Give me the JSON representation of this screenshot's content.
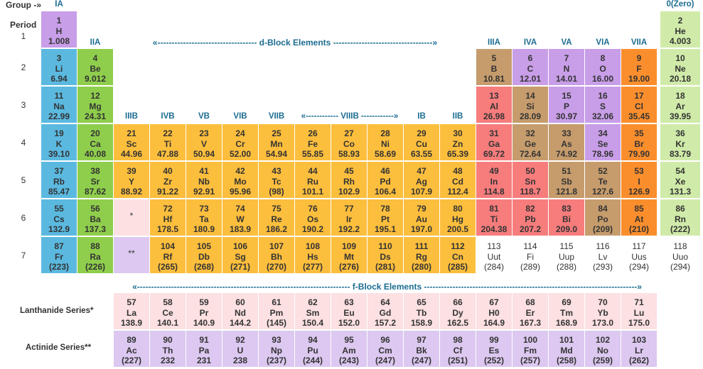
{
  "headers": {
    "group": "Group -»",
    "period": "Period",
    "d_block": "«----------------------------------- d-Block Elements -----------------------------------»",
    "f_block": "«--------------------------------------------------------------------------- f-Block Elements ---------------------------------------------------------------------------»",
    "viiib": "«------------ VIIIB ------------»",
    "lanthanide": "Lanthanide Series*",
    "actinide": "Actinide Series**",
    "lan_marker": "*",
    "act_marker": "**"
  },
  "groups": {
    "g1": "IA",
    "g2": "IIA",
    "g3": "IIIB",
    "g4": "IVB",
    "g5": "VB",
    "g6": "VIB",
    "g7": "VIIB",
    "g11": "IB",
    "g12": "IIB",
    "g13": "IIIA",
    "g14": "IVA",
    "g15": "VA",
    "g16": "VIA",
    "g17": "VIIA",
    "g18": "0(Zero)"
  },
  "periods": [
    "1",
    "2",
    "3",
    "4",
    "5",
    "6",
    "7"
  ],
  "colors": {
    "alkali": "#5bb9e0",
    "alkaline_earth": "#8fce4c",
    "transition": "#fcbe3d",
    "poor_metal": "#f77c7c",
    "metalloid": "#c69c6d",
    "nonmetal": "#c89ee8",
    "halogen": "#fb8e2c",
    "noble_gas": "#d0eba9",
    "lanthanide": "#fce0e2",
    "actinide": "#dcc8f0",
    "header_text": "#1b6c91"
  },
  "elements": [
    {
      "n": "1",
      "s": "H",
      "m": "1.008",
      "cat": "nm"
    },
    {
      "n": "2",
      "s": "He",
      "m": "4.003",
      "cat": "ng"
    },
    {
      "n": "3",
      "s": "Li",
      "m": "6.94",
      "cat": "alk"
    },
    {
      "n": "4",
      "s": "Be",
      "m": "9.012",
      "cat": "ae"
    },
    {
      "n": "5",
      "s": "B",
      "m": "10.81",
      "cat": "md"
    },
    {
      "n": "6",
      "s": "C",
      "m": "12.01",
      "cat": "nm"
    },
    {
      "n": "7",
      "s": "N",
      "m": "14.01",
      "cat": "nm"
    },
    {
      "n": "8",
      "s": "O",
      "m": "16.00",
      "cat": "nm"
    },
    {
      "n": "9",
      "s": "F",
      "m": "19.00",
      "cat": "hal"
    },
    {
      "n": "10",
      "s": "Ne",
      "m": "20.18",
      "cat": "ng"
    },
    {
      "n": "11",
      "s": "Na",
      "m": "22.99",
      "cat": "alk"
    },
    {
      "n": "12",
      "s": "Mg",
      "m": "24.31",
      "cat": "ae"
    },
    {
      "n": "13",
      "s": "Al",
      "m": "26.98",
      "cat": "pt"
    },
    {
      "n": "14",
      "s": "Si",
      "m": "28.09",
      "cat": "md"
    },
    {
      "n": "15",
      "s": "P",
      "m": "30.97",
      "cat": "nm"
    },
    {
      "n": "16",
      "s": "S",
      "m": "32.06",
      "cat": "nm"
    },
    {
      "n": "17",
      "s": "Cl",
      "m": "35.45",
      "cat": "hal"
    },
    {
      "n": "18",
      "s": "Ar",
      "m": "39.95",
      "cat": "ng"
    },
    {
      "n": "19",
      "s": "K",
      "m": "39.10",
      "cat": "alk"
    },
    {
      "n": "20",
      "s": "Ca",
      "m": "40.08",
      "cat": "ae"
    },
    {
      "n": "21",
      "s": "Sc",
      "m": "44.96",
      "cat": "tm"
    },
    {
      "n": "22",
      "s": "Ti",
      "m": "47.88",
      "cat": "tm"
    },
    {
      "n": "23",
      "s": "V",
      "m": "50.94",
      "cat": "tm"
    },
    {
      "n": "24",
      "s": "Cr",
      "m": "52.00",
      "cat": "tm"
    },
    {
      "n": "25",
      "s": "Mn",
      "m": "54.94",
      "cat": "tm"
    },
    {
      "n": "26",
      "s": "Fe",
      "m": "55.85",
      "cat": "tm"
    },
    {
      "n": "27",
      "s": "Co",
      "m": "58.93",
      "cat": "tm"
    },
    {
      "n": "28",
      "s": "Ni",
      "m": "58.69",
      "cat": "tm"
    },
    {
      "n": "29",
      "s": "Cu",
      "m": "63.55",
      "cat": "tm"
    },
    {
      "n": "30",
      "s": "Zn",
      "m": "65.39",
      "cat": "tm"
    },
    {
      "n": "31",
      "s": "Ga",
      "m": "69.72",
      "cat": "pt"
    },
    {
      "n": "32",
      "s": "Ge",
      "m": "72.64",
      "cat": "md"
    },
    {
      "n": "33",
      "s": "As",
      "m": "74.92",
      "cat": "md"
    },
    {
      "n": "34",
      "s": "Se",
      "m": "78.96",
      "cat": "nm"
    },
    {
      "n": "35",
      "s": "Br",
      "m": "79.90",
      "cat": "hal"
    },
    {
      "n": "36",
      "s": "Kr",
      "m": "83.79",
      "cat": "ng"
    },
    {
      "n": "37",
      "s": "Rb",
      "m": "85.47",
      "cat": "alk"
    },
    {
      "n": "38",
      "s": "Sr",
      "m": "87.62",
      "cat": "ae"
    },
    {
      "n": "39",
      "s": "Y",
      "m": "88.92",
      "cat": "tm"
    },
    {
      "n": "40",
      "s": "Zr",
      "m": "91.22",
      "cat": "tm"
    },
    {
      "n": "41",
      "s": "Nb",
      "m": "92.91",
      "cat": "tm"
    },
    {
      "n": "42",
      "s": "Mo",
      "m": "95.96",
      "cat": "tm"
    },
    {
      "n": "43",
      "s": "Tc",
      "m": "(98)",
      "cat": "tm"
    },
    {
      "n": "44",
      "s": "Ru",
      "m": "101.1",
      "cat": "tm"
    },
    {
      "n": "45",
      "s": "Rh",
      "m": "102.9",
      "cat": "tm"
    },
    {
      "n": "46",
      "s": "Pd",
      "m": "106.4",
      "cat": "tm"
    },
    {
      "n": "47",
      "s": "Ag",
      "m": "107.9",
      "cat": "tm"
    },
    {
      "n": "48",
      "s": "Cd",
      "m": "112.4",
      "cat": "tm"
    },
    {
      "n": "49",
      "s": "In",
      "m": "114.8",
      "cat": "pt"
    },
    {
      "n": "50",
      "s": "Sn",
      "m": "118.7",
      "cat": "pt"
    },
    {
      "n": "51",
      "s": "Sb",
      "m": "121.8",
      "cat": "md"
    },
    {
      "n": "52",
      "s": "Te",
      "m": "127.6",
      "cat": "md"
    },
    {
      "n": "53",
      "s": "I",
      "m": "126.9",
      "cat": "hal"
    },
    {
      "n": "54",
      "s": "Xe",
      "m": "131.3",
      "cat": "ng"
    },
    {
      "n": "55",
      "s": "Cs",
      "m": "132.9",
      "cat": "alk"
    },
    {
      "n": "56",
      "s": "Ba",
      "m": "137.3",
      "cat": "ae"
    },
    {
      "n": "72",
      "s": "Hf",
      "m": "178.5",
      "cat": "tm"
    },
    {
      "n": "73",
      "s": "Ta",
      "m": "180.9",
      "cat": "tm"
    },
    {
      "n": "74",
      "s": "W",
      "m": "183.9",
      "cat": "tm"
    },
    {
      "n": "75",
      "s": "Re",
      "m": "186.2",
      "cat": "tm"
    },
    {
      "n": "76",
      "s": "Os",
      "m": "190.2",
      "cat": "tm"
    },
    {
      "n": "77",
      "s": "Ir",
      "m": "192.2",
      "cat": "tm"
    },
    {
      "n": "78",
      "s": "Pt",
      "m": "195.1",
      "cat": "tm"
    },
    {
      "n": "79",
      "s": "Au",
      "m": "197.0",
      "cat": "tm"
    },
    {
      "n": "80",
      "s": "Hg",
      "m": "200.5",
      "cat": "tm"
    },
    {
      "n": "81",
      "s": "Ti",
      "m": "204.38",
      "cat": "pt"
    },
    {
      "n": "82",
      "s": "Pb",
      "m": "207.2",
      "cat": "pt"
    },
    {
      "n": "83",
      "s": "Bi",
      "m": "209.0",
      "cat": "pt"
    },
    {
      "n": "84",
      "s": "Po",
      "m": "(209)",
      "cat": "md"
    },
    {
      "n": "85",
      "s": "At",
      "m": "(210)",
      "cat": "hal"
    },
    {
      "n": "86",
      "s": "Rn",
      "m": "(222)",
      "cat": "ng"
    },
    {
      "n": "87",
      "s": "Fr",
      "m": "(223)",
      "cat": "alk"
    },
    {
      "n": "88",
      "s": "Ra",
      "m": "(226)",
      "cat": "ae"
    },
    {
      "n": "104",
      "s": "Rf",
      "m": "(265)",
      "cat": "tm"
    },
    {
      "n": "105",
      "s": "Db",
      "m": "(268)",
      "cat": "tm"
    },
    {
      "n": "106",
      "s": "Sg",
      "m": "(271)",
      "cat": "tm"
    },
    {
      "n": "107",
      "s": "Bh",
      "m": "(270)",
      "cat": "tm"
    },
    {
      "n": "108",
      "s": "Hs",
      "m": "(277)",
      "cat": "tm"
    },
    {
      "n": "109",
      "s": "Mt",
      "m": "(276)",
      "cat": "tm"
    },
    {
      "n": "110",
      "s": "Ds",
      "m": "(281)",
      "cat": "tm"
    },
    {
      "n": "111",
      "s": "Rg",
      "m": "(280)",
      "cat": "tm"
    },
    {
      "n": "112",
      "s": "Cn",
      "m": "(285)",
      "cat": "tm"
    },
    {
      "n": "113",
      "s": "Uut",
      "m": "(284)",
      "cat": "syn"
    },
    {
      "n": "114",
      "s": "Fi",
      "m": "(289)",
      "cat": "syn"
    },
    {
      "n": "115",
      "s": "Uup",
      "m": "(288)",
      "cat": "syn"
    },
    {
      "n": "116",
      "s": "Lv",
      "m": "(293)",
      "cat": "syn"
    },
    {
      "n": "117",
      "s": "Uus",
      "m": "(294)",
      "cat": "syn"
    },
    {
      "n": "118",
      "s": "Uuo",
      "m": "(294)",
      "cat": "syn"
    },
    {
      "n": "57",
      "s": "La",
      "m": "138.9",
      "cat": "lan"
    },
    {
      "n": "58",
      "s": "Ce",
      "m": "140.1",
      "cat": "lan"
    },
    {
      "n": "59",
      "s": "Pr",
      "m": "140.9",
      "cat": "lan"
    },
    {
      "n": "60",
      "s": "Nd",
      "m": "144.2",
      "cat": "lan"
    },
    {
      "n": "61",
      "s": "Pm",
      "m": "(145)",
      "cat": "lan"
    },
    {
      "n": "62",
      "s": "Sm",
      "m": "150.4",
      "cat": "lan"
    },
    {
      "n": "63",
      "s": "Eu",
      "m": "152.0",
      "cat": "lan"
    },
    {
      "n": "64",
      "s": "Gd",
      "m": "157.2",
      "cat": "lan"
    },
    {
      "n": "65",
      "s": "Tb",
      "m": "158.9",
      "cat": "lan"
    },
    {
      "n": "66",
      "s": "Dy",
      "m": "162.5",
      "cat": "lan"
    },
    {
      "n": "67",
      "s": "H0",
      "m": "164.9",
      "cat": "lan"
    },
    {
      "n": "68",
      "s": "Er",
      "m": "167.3",
      "cat": "lan"
    },
    {
      "n": "69",
      "s": "Tm",
      "m": "168.9",
      "cat": "lan"
    },
    {
      "n": "70",
      "s": "Yb",
      "m": "173.0",
      "cat": "lan"
    },
    {
      "n": "71",
      "s": "Lu",
      "m": "175.0",
      "cat": "lan"
    },
    {
      "n": "89",
      "s": "Ac",
      "m": "(227)",
      "cat": "act"
    },
    {
      "n": "90",
      "s": "Th",
      "m": "232",
      "cat": "act"
    },
    {
      "n": "91",
      "s": "Pa",
      "m": "231",
      "cat": "act"
    },
    {
      "n": "92",
      "s": "U",
      "m": "238",
      "cat": "act"
    },
    {
      "n": "93",
      "s": "Np",
      "m": "(237)",
      "cat": "act"
    },
    {
      "n": "94",
      "s": "Pu",
      "m": "(244)",
      "cat": "act"
    },
    {
      "n": "95",
      "s": "Am",
      "m": "(243)",
      "cat": "act"
    },
    {
      "n": "96",
      "s": "Cm",
      "m": "(247)",
      "cat": "act"
    },
    {
      "n": "97",
      "s": "Bk",
      "m": "(247)",
      "cat": "act"
    },
    {
      "n": "98",
      "s": "Cf",
      "m": "(251)",
      "cat": "act"
    },
    {
      "n": "99",
      "s": "Es",
      "m": "(252)",
      "cat": "act"
    },
    {
      "n": "100",
      "s": "Fm",
      "m": "(257)",
      "cat": "act"
    },
    {
      "n": "101",
      "s": "Md",
      "m": "(258)",
      "cat": "act"
    },
    {
      "n": "102",
      "s": "No",
      "m": "(259)",
      "cat": "act"
    },
    {
      "n": "103",
      "s": "Lr",
      "m": "(262)",
      "cat": "act"
    }
  ]
}
